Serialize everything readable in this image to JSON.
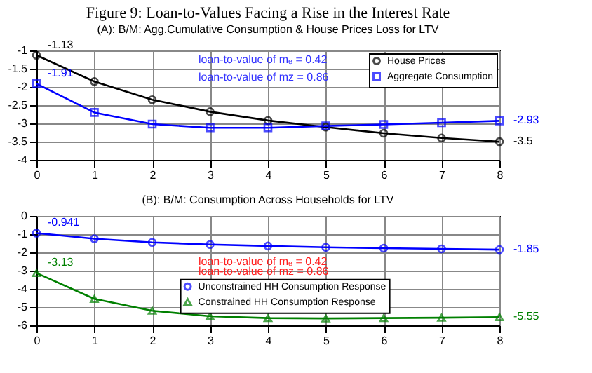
{
  "chart_data": [
    {
      "type": "line",
      "title": "Figure 9: Loan-to-Values Facing a Rise in the Interest Rate",
      "subtitle": "(A): B/M: Agg.Cumulative Consumption & House Prices Loss for LTV",
      "x": [
        0,
        1,
        2,
        3,
        4,
        5,
        6,
        7,
        8
      ],
      "xlim": [
        0,
        8
      ],
      "xticks": [
        0,
        1,
        2,
        3,
        4,
        5,
        6,
        7,
        8
      ],
      "ylim": [
        -4,
        -1
      ],
      "yticks": [
        -4,
        -3.5,
        -3,
        -2.5,
        -2,
        -1.5,
        -1
      ],
      "series": [
        {
          "name": "House Prices",
          "color": "#000000",
          "marker": "circle",
          "values": [
            -1.13,
            -1.85,
            -2.35,
            -2.68,
            -2.92,
            -3.1,
            -3.27,
            -3.4,
            -3.5
          ],
          "value_labels": [
            "-1.13",
            null,
            null,
            null,
            null,
            null,
            null,
            null,
            "-3.5"
          ]
        },
        {
          "name": "Aggregate Consumption",
          "color": "#0000ff",
          "marker": "square",
          "values": [
            -1.91,
            -2.7,
            -3.02,
            -3.12,
            -3.12,
            -3.07,
            -3.03,
            -2.98,
            -2.93
          ],
          "value_labels": [
            "-1.91",
            null,
            null,
            null,
            null,
            null,
            null,
            null,
            "-2.93"
          ]
        }
      ],
      "annotations": [
        "loan-to-value of mₑ =   0.42",
        "loan-to-value of mz =   0.86"
      ],
      "grid": true,
      "legend": "top right",
      "line_style": "solid"
    },
    {
      "type": "line",
      "title": "(B): B/M: Consumption Across Households for LTV",
      "x": [
        0,
        1,
        2,
        3,
        4,
        5,
        6,
        7,
        8
      ],
      "xlim": [
        0,
        8
      ],
      "xticks": [
        0,
        1,
        2,
        3,
        4,
        5,
        6,
        7,
        8
      ],
      "ylim": [
        -6,
        0
      ],
      "yticks": [
        -6,
        -5,
        -4,
        -3,
        -2,
        -1,
        0
      ],
      "series": [
        {
          "name": "Unconstrained HH Consumption Response",
          "color": "#0000ff",
          "marker": "circle",
          "values": [
            -0.941,
            -1.25,
            -1.45,
            -1.57,
            -1.65,
            -1.72,
            -1.77,
            -1.81,
            -1.85
          ],
          "value_labels": [
            "-0.941",
            null,
            null,
            null,
            null,
            null,
            null,
            null,
            "-1.85"
          ]
        },
        {
          "name": "Constrained HH Consumption Response",
          "color": "#008000",
          "marker": "triangle",
          "values": [
            -3.13,
            -4.55,
            -5.2,
            -5.5,
            -5.6,
            -5.62,
            -5.6,
            -5.58,
            -5.55
          ],
          "value_labels": [
            "-3.13",
            null,
            null,
            null,
            null,
            null,
            null,
            null,
            "-5.55"
          ]
        }
      ],
      "annotations": [
        "loan-to-value of mₑ =   0.42",
        "loan-to-value of mz =   0.86"
      ],
      "grid": true,
      "legend": "bottom",
      "line_style": "solid"
    }
  ]
}
